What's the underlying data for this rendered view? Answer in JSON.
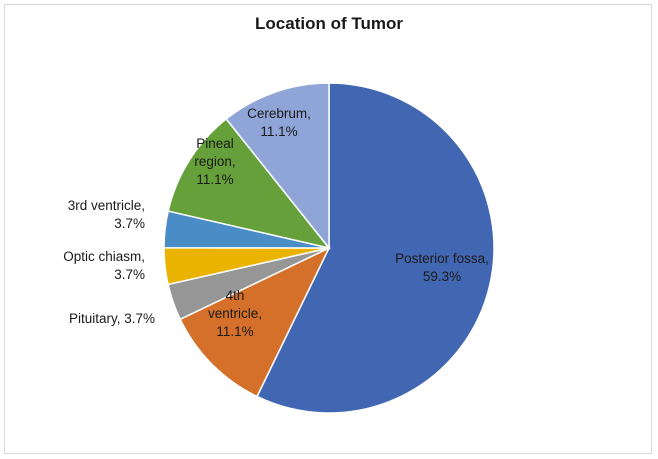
{
  "chart_data": {
    "type": "pie",
    "title": "Location of Tumor",
    "slices": [
      {
        "name": "Posterior fossa",
        "value": 59.3,
        "label_lines": [
          "Posterior fossa,",
          "59.3%"
        ],
        "color": "#4267b2"
      },
      {
        "name": "4th ventricle",
        "value": 11.1,
        "label_lines": [
          "4th",
          "ventricle,",
          "11.1%"
        ],
        "color": "#d4702a"
      },
      {
        "name": "Pituitary",
        "value": 3.7,
        "label_lines": [
          "Pituitary, 3.7%"
        ],
        "color": "#969696"
      },
      {
        "name": "Optic chiasm",
        "value": 3.7,
        "label_lines": [
          "Optic chiasm,",
          "3.7%"
        ],
        "color": "#e9b300"
      },
      {
        "name": "3rd ventricle",
        "value": 3.7,
        "label_lines": [
          "3rd ventricle,",
          "3.7%"
        ],
        "color": "#4a8cc6"
      },
      {
        "name": "Pineal region",
        "value": 11.1,
        "label_lines": [
          "Pineal",
          "region,",
          "11.1%"
        ],
        "color": "#66a03b"
      },
      {
        "name": "Cerebrum",
        "value": 11.1,
        "label_lines": [
          "Cerebrum,",
          "11.1%"
        ],
        "color": "#8fa5d7"
      }
    ],
    "start_angle_deg": 0,
    "direction": "clockwise",
    "legend": "none",
    "data_labels": "category name and percentage"
  }
}
